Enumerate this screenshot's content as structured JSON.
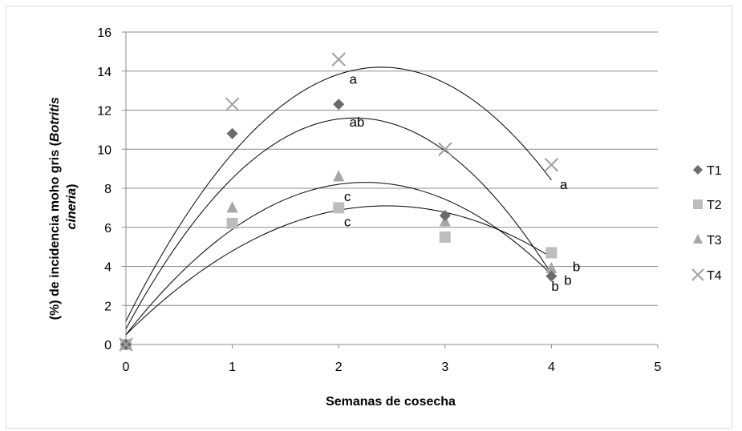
{
  "chart_data": {
    "type": "scatter",
    "title": "",
    "xlabel": "Semanas de cosecha",
    "ylabel": "(%) de incidencia moho gris (Botritis cineria)",
    "ylabel_parts": {
      "line1_plain": "(%) de incidencia moho gris (",
      "line1_italic": "Botritis",
      "line2_italic": "cineria",
      "line2_plain": ")"
    },
    "xlim": [
      0,
      5
    ],
    "ylim": [
      0,
      16
    ],
    "x_ticks": [
      "0",
      "1",
      "2",
      "3",
      "4",
      "5"
    ],
    "y_ticks": [
      "0",
      "2",
      "4",
      "6",
      "8",
      "10",
      "12",
      "14",
      "16"
    ],
    "grid": "horizontal",
    "legend_position": "right",
    "series": [
      {
        "name": "T1",
        "marker": "diamond",
        "color": "#6b6b6b",
        "x": [
          0,
          1,
          2,
          3,
          4
        ],
        "y": [
          0,
          10.8,
          12.3,
          6.6,
          3.5
        ],
        "trend": {
          "x0": 0,
          "y0": 0.8,
          "xv": 2.15,
          "yv": 11.6,
          "x1": 4,
          "y1": 3.4
        }
      },
      {
        "name": "T2",
        "marker": "square",
        "color": "#bdbdbd",
        "x": [
          0,
          1,
          2,
          3,
          4
        ],
        "y": [
          0,
          6.2,
          7.0,
          5.5,
          4.7
        ],
        "trend": {
          "x0": 0,
          "y0": 0.5,
          "xv": 2.45,
          "yv": 7.1,
          "x1": 4,
          "y1": 3.3
        }
      },
      {
        "name": "T3",
        "marker": "triangle",
        "color": "#a6a6a6",
        "x": [
          0,
          1,
          2,
          3,
          4
        ],
        "y": [
          0,
          7.0,
          8.6,
          6.3,
          3.9
        ],
        "trend": {
          "x0": 0,
          "y0": 0.5,
          "xv": 2.25,
          "yv": 8.3,
          "x1": 4,
          "y1": 3.5
        }
      },
      {
        "name": "T4",
        "marker": "x",
        "color": "#a0a0a0",
        "x": [
          0,
          1,
          2,
          3,
          4
        ],
        "y": [
          0,
          12.3,
          14.6,
          10.0,
          9.2
        ],
        "trend": {
          "x0": 0,
          "y0": 1.2,
          "xv": 2.4,
          "yv": 14.2,
          "x1": 4,
          "y1": 7.6
        }
      }
    ],
    "annotations": [
      {
        "text": "a",
        "x": 2.1,
        "y": 13.6
      },
      {
        "text": "ab",
        "x": 2.1,
        "y": 11.4
      },
      {
        "text": "c",
        "x": 2.05,
        "y": 7.6
      },
      {
        "text": "c",
        "x": 2.05,
        "y": 6.3
      },
      {
        "text": "a",
        "x": 4.08,
        "y": 8.2
      },
      {
        "text": "b",
        "x": 4.2,
        "y": 4.0
      },
      {
        "text": "b",
        "x": 4.12,
        "y": 3.3
      },
      {
        "text": "b",
        "x": 4.0,
        "y": 3.0
      }
    ]
  }
}
